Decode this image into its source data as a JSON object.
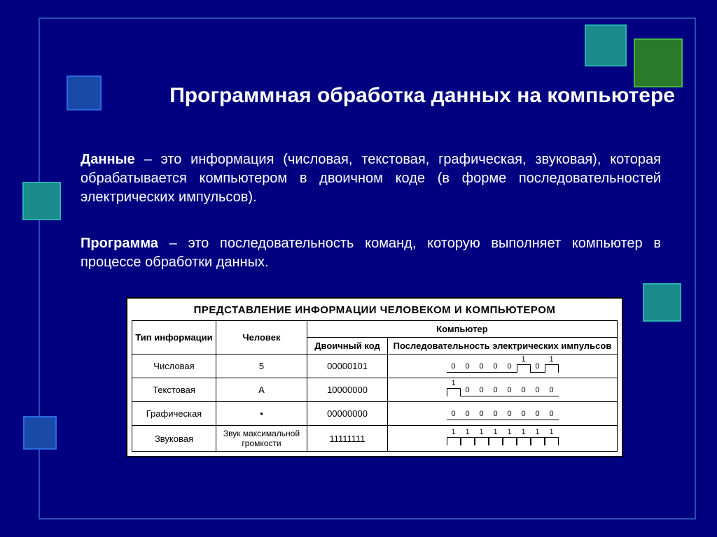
{
  "colors": {
    "background": "#000080",
    "frame_border": "#2a4db0",
    "text": "#ffffff",
    "table_bg": "#ffffff",
    "table_border": "#000000",
    "sq_teal_fill": "#1a8a8a",
    "sq_teal_border": "#2ab0b0",
    "sq_green_fill": "#2a7a2a",
    "sq_green_border": "#4ab04a",
    "sq_blue_fill": "#1a4aa8",
    "sq_blue_border": "#2a6ae0"
  },
  "title": "Программная обработка данных на компьютере",
  "paragraph1_bold": "Данные",
  "paragraph1_rest": " – это информация (числовая, текстовая, графическая, звуковая), которая обрабатывается компьютером в двоичном коде (в форме последовательностей электрических импульсов).",
  "paragraph2_bold": "Программа",
  "paragraph2_rest": " – это последовательность команд, которую выполняет компьютер в процессе обработки данных.",
  "table": {
    "title": "ПРЕДСТАВЛЕНИЕ ИНФОРМАЦИИ ЧЕЛОВЕКОМ И КОМПЬЮТЕРОМ",
    "header_type": "Тип информации",
    "header_human": "Человек",
    "header_computer": "Компьютер",
    "header_binary": "Двоичный код",
    "header_impulse": "Последовательность электрических импульсов",
    "rows": [
      {
        "type": "Числовая",
        "human": "5",
        "binary": "00000101",
        "bits": [
          0,
          0,
          0,
          0,
          0,
          1,
          0,
          1
        ]
      },
      {
        "type": "Текстовая",
        "human": "A",
        "binary": "10000000",
        "bits": [
          1,
          0,
          0,
          0,
          0,
          0,
          0,
          0
        ]
      },
      {
        "type": "Графическая",
        "human": "•",
        "binary": "00000000",
        "bits": [
          0,
          0,
          0,
          0,
          0,
          0,
          0,
          0
        ]
      },
      {
        "type": "Звуковая",
        "human": "Звук максимальной громкости",
        "binary": "11111111",
        "bits": [
          1,
          1,
          1,
          1,
          1,
          1,
          1,
          1
        ]
      }
    ]
  },
  "fonts": {
    "title_size": 30,
    "body_size": 20,
    "table_title_size": 15,
    "table_cell_size": 13
  }
}
